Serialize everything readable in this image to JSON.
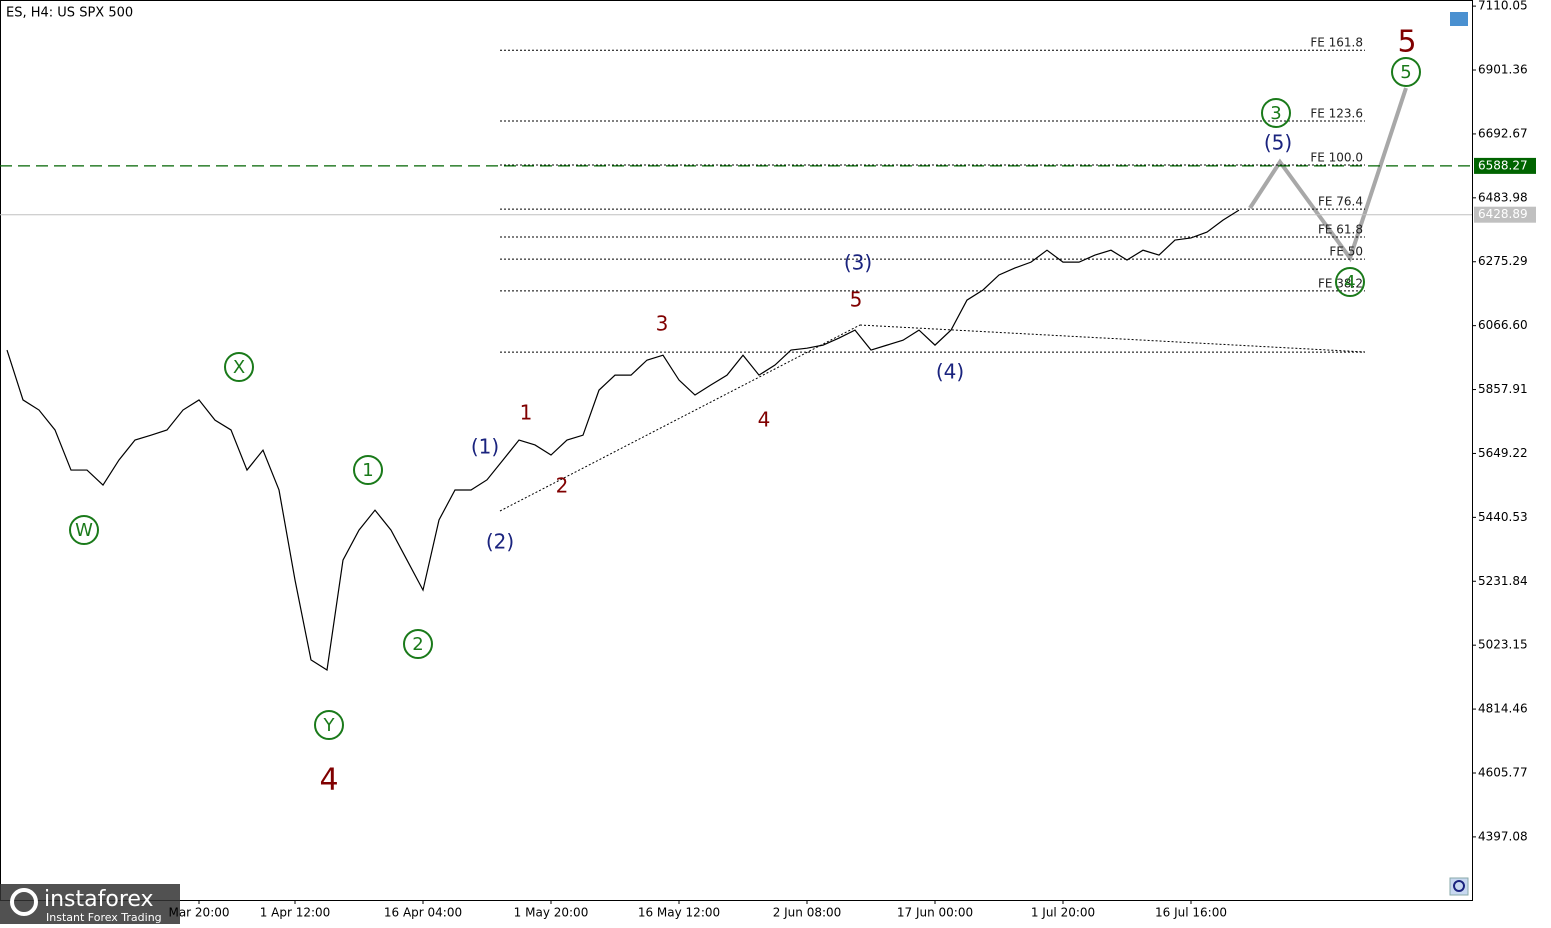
{
  "chart_data": {
    "type": "line",
    "title": "ES, H4:  US SPX 500",
    "categories": [
      null,
      null,
      null,
      null,
      null,
      null,
      null,
      null,
      null,
      null,
      null,
      null,
      "Mar 20:00",
      null,
      null,
      null,
      null,
      null,
      "1 Apr 12:00",
      null,
      null,
      null,
      null,
      null,
      null,
      null,
      "16 Apr 04:00",
      null,
      null,
      null,
      null,
      null,
      null,
      null,
      "1 May 20:00",
      null,
      null,
      null,
      null,
      null,
      null,
      null,
      "16 May 12:00",
      null,
      null,
      null,
      null,
      null,
      null,
      null,
      "2 Jun 08:00",
      null,
      null,
      null,
      null,
      null,
      null,
      null,
      "17 Jun 00:00",
      null,
      null,
      null,
      null,
      null,
      null,
      null,
      "1 Jul 20:00",
      null,
      null,
      null,
      null,
      null,
      null,
      null,
      "16 Jul 16:00",
      null,
      null,
      null
    ],
    "series": [
      {
        "name": "ES",
        "color": "#000000",
        "values": [
          5987,
          5824,
          5791,
          5726,
          5595,
          5595,
          5546,
          5628,
          5693,
          5709,
          5726,
          5791,
          5824,
          5758,
          5726,
          5595,
          5660,
          5530,
          5236,
          4975,
          4942,
          5301,
          5399,
          5464,
          5399,
          5301,
          5203,
          5432,
          5530,
          5530,
          5563,
          5628,
          5693,
          5677,
          5644,
          5693,
          5709,
          5856,
          5905,
          5905,
          5954,
          5970,
          5889,
          5840,
          5873,
          5905,
          5970,
          5905,
          5938,
          5987,
          5993,
          6003,
          6026,
          6052,
          5987,
          6003,
          6019,
          6052,
          6003,
          6052,
          6150,
          6183,
          6232,
          6255,
          6274,
          6313,
          6274,
          6274,
          6297,
          6313,
          6281,
          6313,
          6297,
          6346,
          6353,
          6372,
          6411,
          6444
        ]
      }
    ],
    "ylim": [
      4191,
      7130
    ],
    "yticks": [
      7110.05,
      6901.36,
      6692.67,
      6483.98,
      6275.29,
      {
        "value": 6066.6,
        "label": "6066.60"
      },
      5857.91,
      5649.22,
      5440.53,
      5231.84,
      5023.15,
      4814.46,
      4605.77,
      4397.08
    ],
    "price_lines": [
      {
        "value": 6588.27,
        "color": "#006400",
        "style": "dashed"
      },
      {
        "value": 6428.89,
        "color": "#c0c0c0",
        "style": "solid"
      }
    ],
    "fib_levels": [
      {
        "label": "FE 161.8",
        "value": 6966
      },
      {
        "label": "FE 123.6",
        "value": 6735
      },
      {
        "label": "FE 100.0",
        "value": 6591
      },
      {
        "label": "FE 76.4",
        "value": 6447
      },
      {
        "label": "FE 61.8",
        "value": 6356
      },
      {
        "label": "FE 50",
        "value": 6284
      },
      {
        "label": "FE 38.2",
        "value": 6180
      }
    ],
    "fib_base": 5980,
    "annotations": [
      {
        "text": "W",
        "color": "#1a7a1a",
        "style": "circle"
      },
      {
        "text": "X",
        "color": "#1a7a1a",
        "style": "circle"
      },
      {
        "text": "Y",
        "color": "#1a7a1a",
        "style": "circle"
      },
      {
        "text": "4",
        "color": "#800000",
        "style": "big"
      },
      {
        "text": "1",
        "color": "#1a7a1a",
        "style": "circle"
      },
      {
        "text": "2",
        "color": "#1a7a1a",
        "style": "circle"
      },
      {
        "text": "(1)",
        "color": "#1a237e",
        "style": "plain"
      },
      {
        "text": "(2)",
        "color": "#1a237e",
        "style": "plain"
      },
      {
        "text": "1",
        "color": "#800000",
        "style": "plain"
      },
      {
        "text": "2",
        "color": "#800000",
        "style": "plain"
      },
      {
        "text": "3",
        "color": "#800000",
        "style": "plain"
      },
      {
        "text": "4",
        "color": "#800000",
        "style": "plain"
      },
      {
        "text": "5",
        "color": "#800000",
        "style": "plain"
      },
      {
        "text": "(3)",
        "color": "#1a237e",
        "style": "plain"
      },
      {
        "text": "(4)",
        "color": "#1a237e",
        "style": "plain"
      },
      {
        "text": "(5)",
        "color": "#1a237e",
        "style": "plain"
      },
      {
        "text": "3",
        "color": "#1a7a1a",
        "style": "circle"
      },
      {
        "text": "4",
        "color": "#1a7a1a",
        "style": "circle"
      },
      {
        "text": "5",
        "color": "#1a7a1a",
        "style": "circle"
      },
      {
        "text": "5",
        "color": "#800000",
        "style": "big"
      }
    ],
    "logo": {
      "name": "instaforex",
      "tagline": "Instant Forex Trading"
    }
  }
}
